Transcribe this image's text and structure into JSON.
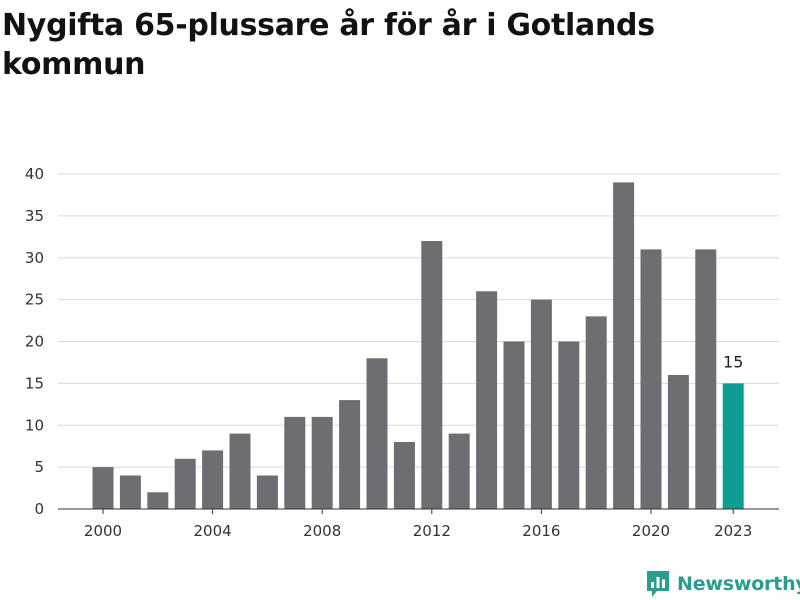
{
  "title": "Nygifta 65-plussare år för år i Gotlands kommun",
  "brand": {
    "name": "Newsworthy",
    "icon": "bar-chart-logo-icon",
    "color": "#2a9d8f"
  },
  "colors": {
    "bar": "#6e6d72",
    "highlight": "#0e9d92",
    "grid": "#d9d9d9",
    "axis": "#333333"
  },
  "chart_data": {
    "type": "bar",
    "title": "Nygifta 65-plussare år för år i Gotlands kommun",
    "xlabel": "",
    "ylabel": "",
    "categories": [
      "2000",
      "2001",
      "2002",
      "2003",
      "2004",
      "2005",
      "2006",
      "2007",
      "2008",
      "2009",
      "2010",
      "2011",
      "2012",
      "2013",
      "2014",
      "2015",
      "2016",
      "2017",
      "2018",
      "2019",
      "2020",
      "2021",
      "2022",
      "2023"
    ],
    "values": [
      5,
      4,
      2,
      6,
      7,
      9,
      4,
      11,
      11,
      13,
      18,
      8,
      32,
      9,
      26,
      20,
      25,
      20,
      23,
      39,
      31,
      16,
      31,
      15
    ],
    "x_tick_labels": [
      "2000",
      "2004",
      "2008",
      "2012",
      "2016",
      "2020",
      "2023"
    ],
    "y_ticks": [
      0,
      5,
      10,
      15,
      20,
      25,
      30,
      35,
      40
    ],
    "ylim": [
      0,
      40
    ],
    "grid": true,
    "highlight": {
      "category": "2023",
      "label": "15"
    }
  }
}
